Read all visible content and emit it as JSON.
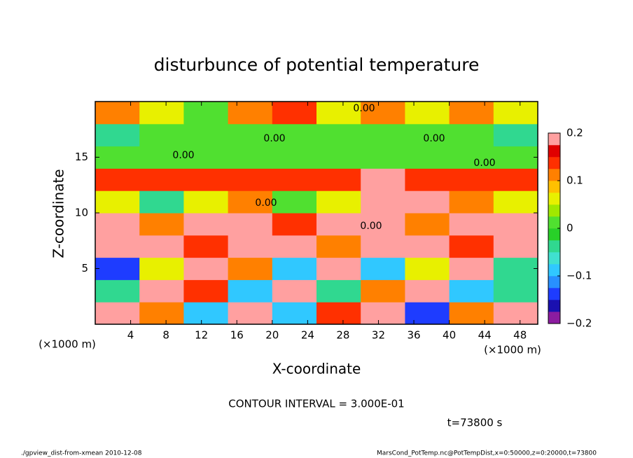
{
  "chart_data": {
    "type": "heatmap",
    "title": "disturbunce of potential temperature",
    "xlabel": "X-coordinate",
    "ylabel": "Z-coordinate",
    "x_unit": "(×1000 m)",
    "y_unit": "(×1000 m)",
    "xlim": [
      0,
      50
    ],
    "ylim": [
      0,
      20
    ],
    "xticks": [
      4,
      8,
      12,
      16,
      20,
      24,
      28,
      32,
      36,
      40,
      44,
      48
    ],
    "yticks": [
      5,
      10,
      15
    ],
    "values": [
      [
        0.2,
        0.1,
        -0.1,
        0.2,
        -0.1,
        0.15,
        0.2,
        -0.15,
        0.1,
        0.2
      ],
      [
        -0.05,
        0.2,
        0.15,
        -0.1,
        0.2,
        -0.05,
        0.1,
        0.2,
        -0.1,
        -0.05
      ],
      [
        -0.15,
        0.05,
        0.2,
        0.1,
        -0.1,
        0.2,
        -0.1,
        0.05,
        0.2,
        -0.05
      ],
      [
        0.2,
        0.2,
        0.15,
        0.2,
        0.2,
        0.1,
        0.2,
        0.2,
        0.15,
        0.2
      ],
      [
        0.2,
        0.1,
        0.2,
        0.2,
        0.15,
        0.2,
        0.2,
        0.1,
        0.2,
        0.2
      ],
      [
        0.05,
        -0.05,
        0.05,
        0.1,
        0,
        0.05,
        0.2,
        0.2,
        0.1,
        0.05
      ],
      [
        0.15,
        0.15,
        0.15,
        0.15,
        0.15,
        0.15,
        0.2,
        0.15,
        0.15,
        0.15
      ],
      [
        0,
        0,
        0.02,
        0,
        0,
        0,
        0,
        0.02,
        0,
        0
      ],
      [
        -0.03,
        0,
        0,
        0,
        0,
        0,
        0,
        0,
        0,
        -0.03
      ],
      [
        0.1,
        0.05,
        0,
        0.1,
        0.15,
        0.05,
        0.1,
        0.05,
        0.1,
        0.05
      ]
    ],
    "clim": [
      -0.2,
      0.2
    ],
    "cticks": [
      {
        "value": -0.2,
        "label": "−0.2"
      },
      {
        "value": -0.1,
        "label": "−0.1"
      },
      0,
      0.1,
      0.2
    ],
    "colors": [
      "#8c1ca0",
      "#1a10b0",
      "#1e3cff",
      "#2890ff",
      "#30c8ff",
      "#40e0d0",
      "#30d890",
      "#28d028",
      "#50e030",
      "#a0e800",
      "#e8f000",
      "#ffc000",
      "#ff8000",
      "#ff3000",
      "#e00000",
      "#ffa0a0"
    ],
    "contour_labels": [
      "0.00",
      "0.00",
      "0.00",
      "0.00",
      "0.00",
      "0.00",
      "0.00"
    ],
    "contour_interval": "CONTOUR INTERVAL = 3.000E-01",
    "time": "t=73800 s",
    "footer_left": "./gpview_dist-from-xmean  2010-12-08",
    "footer_right": "MarsCond_PotTemp.nc@PotTempDist,x=0:50000,z=0:20000,t=73800"
  }
}
